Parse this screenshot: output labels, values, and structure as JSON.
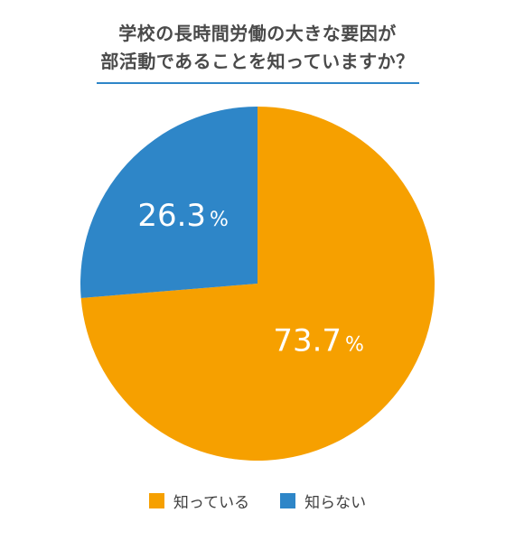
{
  "title": {
    "line1": "学校の長時間労働の大きな要因が",
    "line2": "部活動であることを知っていますか？"
  },
  "colors": {
    "accent_rule": "#2e86c8",
    "slice_know": "#f6a000",
    "slice_dont_know": "#2e86c8"
  },
  "chart_data": {
    "type": "pie",
    "title": "学校の長時間労働の大きな要因が部活動であることを知っていますか？",
    "slices": [
      {
        "name": "知っている",
        "value": 73.7,
        "label": "73.7",
        "unit": "%",
        "color": "#f6a000"
      },
      {
        "name": "知らない",
        "value": 26.3,
        "label": "26.3",
        "unit": "%",
        "color": "#2e86c8"
      }
    ],
    "legend_placement": "bottom"
  },
  "legend": {
    "items": [
      {
        "label": "知っている",
        "color": "#f6a000"
      },
      {
        "label": "知らない",
        "color": "#2e86c8"
      }
    ]
  }
}
